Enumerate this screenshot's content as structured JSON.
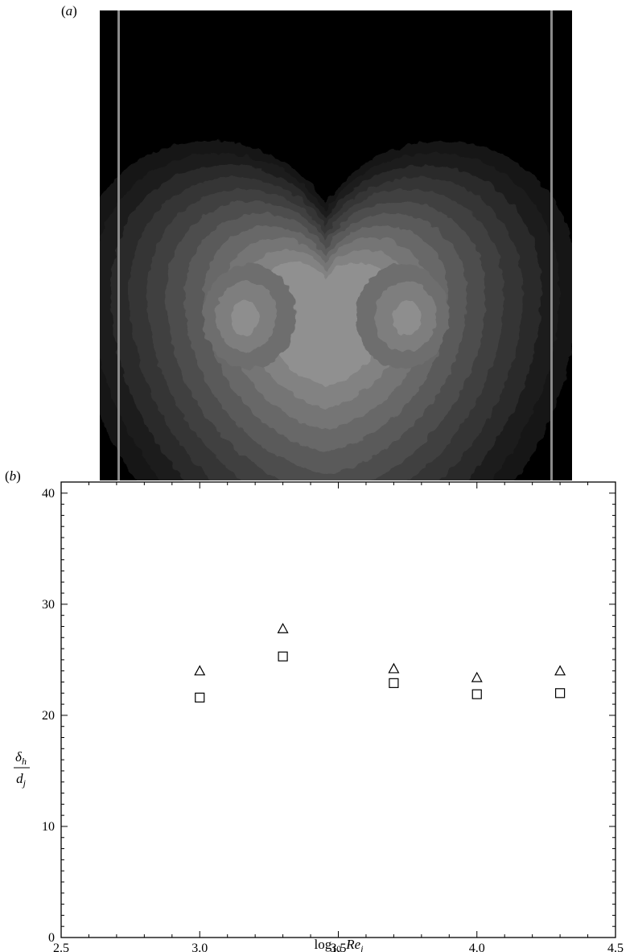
{
  "panels": {
    "a_label": "(a)",
    "b_label": "(b)"
  },
  "contour_image": {
    "background_color": "#000000",
    "boundary_line_color": "#8a8a8a",
    "gray_levels": [
      "#151515",
      "#1f1f1f",
      "#2a2a2a",
      "#353535",
      "#414141",
      "#4d4d4d",
      "#5a5a5a",
      "#676767",
      "#747474",
      "#828282",
      "#909090"
    ]
  },
  "chart_data": {
    "type": "scatter",
    "xlim": [
      2.5,
      4.5
    ],
    "ylim": [
      0,
      41
    ],
    "x_ticks": [
      "2.5",
      "3.0",
      "3.5",
      "4.0",
      "4.5"
    ],
    "y_ticks": [
      "0",
      "10",
      "20",
      "30",
      "40"
    ],
    "xlabel": {
      "prefix": "log",
      "subscript": "10",
      "var": "Re",
      "var_sub": "j"
    },
    "ylabel": {
      "num": "δ",
      "num_sub": "h",
      "den": "d",
      "den_sub": "j"
    },
    "grid": false,
    "legend": "none",
    "series": [
      {
        "marker": "triangle",
        "x": [
          3.0,
          3.3,
          3.7,
          4.0,
          4.3
        ],
        "y": [
          24.0,
          27.8,
          24.2,
          23.4,
          24.0
        ]
      },
      {
        "marker": "square",
        "x": [
          3.0,
          3.3,
          3.7,
          4.0,
          4.3
        ],
        "y": [
          21.6,
          25.3,
          22.9,
          21.9,
          22.0
        ]
      }
    ]
  }
}
